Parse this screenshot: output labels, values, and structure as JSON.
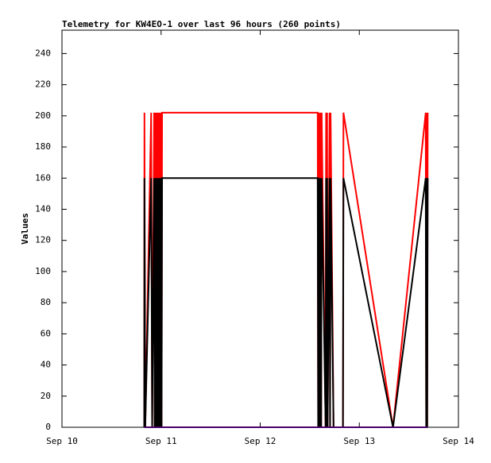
{
  "chart_data": {
    "type": "line",
    "title": "Telemetry for KW4EO-1 over last 96 hours (260 points)",
    "ylabel": "Values",
    "x": [
      0.83,
      0.832,
      0.84,
      0.9,
      0.91,
      0.93,
      0.935,
      0.94,
      0.945,
      0.95,
      0.955,
      0.96,
      0.965,
      0.97,
      0.975,
      0.98,
      0.985,
      0.99,
      0.995,
      1.0,
      1.005,
      1.01,
      2.58,
      2.585,
      2.59,
      2.595,
      2.6,
      2.605,
      2.61,
      2.615,
      2.62,
      2.66,
      2.665,
      2.67,
      2.675,
      2.68,
      2.7,
      2.705,
      2.71,
      2.74,
      2.835,
      2.84,
      3.34,
      3.67,
      3.675,
      3.68,
      3.685,
      3.69
    ],
    "series": [
      {
        "color": "#ff0000",
        "values": [
          0,
          202,
          0,
          202,
          0,
          202,
          0,
          202,
          0,
          202,
          0,
          202,
          0,
          202,
          0,
          202,
          0,
          202,
          0,
          202,
          0,
          202,
          202,
          0,
          202,
          0,
          202,
          0,
          202,
          0,
          202,
          0,
          202,
          0,
          202,
          0,
          202,
          0,
          202,
          0,
          0,
          202,
          0,
          202,
          0,
          202,
          0,
          202
        ]
      },
      {
        "color": "#000000",
        "values": [
          0,
          160,
          0,
          160,
          0,
          160,
          0,
          160,
          0,
          160,
          0,
          160,
          0,
          160,
          0,
          160,
          0,
          160,
          0,
          160,
          0,
          160,
          160,
          0,
          160,
          0,
          160,
          0,
          160,
          0,
          160,
          0,
          160,
          0,
          160,
          0,
          160,
          0,
          160,
          0,
          0,
          160,
          0,
          160,
          0,
          160,
          0,
          160
        ]
      },
      {
        "color": "#9400d3",
        "values": [
          0,
          0,
          0,
          0,
          0,
          0,
          0,
          0,
          0,
          0,
          0,
          0,
          0,
          0,
          0,
          0,
          0,
          0,
          0,
          0,
          0,
          0,
          0,
          0,
          0,
          0,
          0,
          0,
          0,
          0,
          0,
          0,
          0,
          0,
          0,
          0,
          0,
          0,
          0,
          0,
          0,
          0,
          0,
          0,
          0,
          0,
          0,
          0
        ]
      }
    ],
    "xlim": [
      0,
      4
    ],
    "xticks": [
      {
        "value": 0,
        "label": "Sep 10"
      },
      {
        "value": 1,
        "label": "Sep 11"
      },
      {
        "value": 2,
        "label": "Sep 12"
      },
      {
        "value": 3,
        "label": "Sep 13"
      },
      {
        "value": 4,
        "label": "Sep 14"
      }
    ],
    "ylim": [
      0,
      255
    ],
    "yticks": [
      0,
      20,
      40,
      60,
      80,
      100,
      120,
      140,
      160,
      180,
      200,
      220,
      240
    ],
    "grid": false
  }
}
